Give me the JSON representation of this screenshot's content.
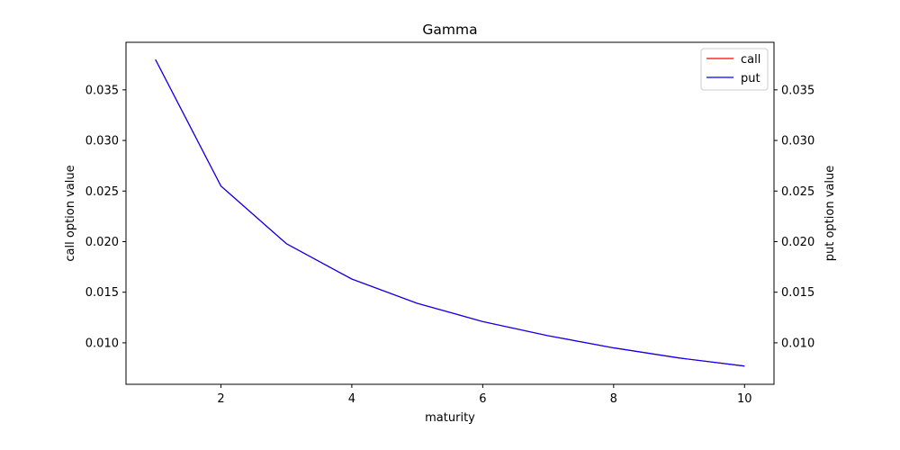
{
  "chart_data": {
    "type": "line",
    "title": "Gamma",
    "xlabel": "maturity",
    "ylabel_left": "call option value",
    "ylabel_right": "put option value",
    "xlim": [
      0.55,
      10.45
    ],
    "ylim": [
      0.0059,
      0.0397
    ],
    "x_ticks": [
      2,
      4,
      6,
      8,
      10
    ],
    "x_tick_labels": [
      "2",
      "4",
      "6",
      "8",
      "10"
    ],
    "y_ticks": [
      0.01,
      0.015,
      0.02,
      0.025,
      0.03,
      0.035
    ],
    "y_tick_labels": [
      "0.010",
      "0.015",
      "0.020",
      "0.025",
      "0.030",
      "0.035"
    ],
    "x": [
      1,
      2,
      3,
      4,
      5,
      6,
      7,
      8,
      9,
      10
    ],
    "series": [
      {
        "name": "call",
        "axis": "left",
        "color": "#ff0000",
        "values": [
          0.038,
          0.0255,
          0.0198,
          0.0163,
          0.0139,
          0.0121,
          0.0107,
          0.0095,
          0.0085,
          0.0077
        ]
      },
      {
        "name": "put",
        "axis": "right",
        "color": "#0000ff",
        "values": [
          0.038,
          0.0255,
          0.0198,
          0.0163,
          0.0139,
          0.0121,
          0.0107,
          0.0095,
          0.0085,
          0.0077
        ]
      }
    ],
    "legend": {
      "location": "upper-right",
      "entries": [
        "call",
        "put"
      ]
    },
    "grid": false
  }
}
